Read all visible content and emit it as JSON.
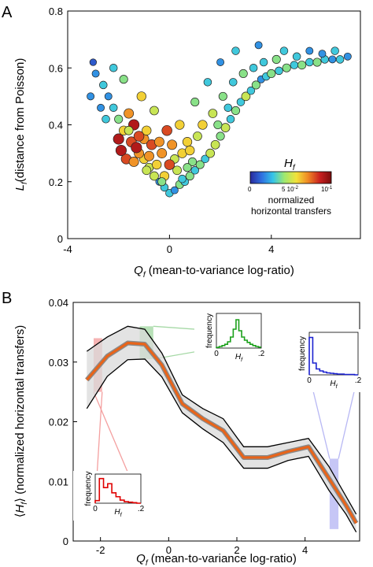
{
  "panel_a": {
    "letter": "A",
    "chart_data": {
      "type": "scatter",
      "xlabel_sym": "Q",
      "xlabel_sub": "f",
      "xlabel_rest": " (mean-to-variance log-ratio)",
      "ylabel_sym": "L",
      "ylabel_sub": "f",
      "ylabel_rest": "(distance from Poisson)",
      "xlim": [
        -4,
        7.5
      ],
      "ylim": [
        0,
        0.8
      ],
      "xticks": [
        "-4",
        "0",
        "4"
      ],
      "xtick_values": [
        -4,
        0,
        4
      ],
      "yticks": [
        "0",
        "0.2",
        "0.4",
        "0.6",
        "0.8"
      ],
      "ytick_values": [
        0,
        0.2,
        0.4,
        0.6,
        0.8
      ],
      "colorbar": {
        "title_sym": "H",
        "title_sub": "f",
        "tick_labels": [
          "0",
          "5 10",
          "-2",
          "10",
          "-1"
        ],
        "caption_line1": "normalized",
        "caption_line2": "horizontal transfers",
        "colors": [
          "#2a2a9c",
          "#2f6fe0",
          "#35c4e8",
          "#9ee870",
          "#f2e23a",
          "#f08a25",
          "#c92020",
          "#7a0d0d"
        ]
      },
      "points": [
        [
          0.0,
          0.16,
          0.3
        ],
        [
          0.2,
          0.17,
          0.2
        ],
        [
          -0.2,
          0.18,
          0.3
        ],
        [
          0.4,
          0.19,
          0.4
        ],
        [
          -0.4,
          0.2,
          0.2
        ],
        [
          0.6,
          0.2,
          0.3
        ],
        [
          -0.6,
          0.22,
          0.5
        ],
        [
          0.8,
          0.22,
          0.4
        ],
        [
          1.0,
          0.24,
          0.3
        ],
        [
          -0.8,
          0.25,
          0.5
        ],
        [
          1.2,
          0.26,
          0.4
        ],
        [
          -1.0,
          0.28,
          0.6
        ],
        [
          1.4,
          0.28,
          0.3
        ],
        [
          -1.2,
          0.3,
          0.7
        ],
        [
          1.6,
          0.3,
          0.5
        ],
        [
          -0.5,
          0.26,
          0.6
        ],
        [
          0.3,
          0.24,
          0.5
        ],
        [
          0.9,
          0.27,
          0.4
        ],
        [
          -0.3,
          0.3,
          0.7
        ],
        [
          0.5,
          0.3,
          0.6
        ],
        [
          -1.5,
          0.34,
          0.8
        ],
        [
          -1.3,
          0.32,
          0.9
        ],
        [
          -1.0,
          0.35,
          0.7
        ],
        [
          -0.7,
          0.33,
          0.8
        ],
        [
          -1.8,
          0.38,
          0.6
        ],
        [
          -2.0,
          0.42,
          0.4
        ],
        [
          -2.2,
          0.46,
          0.3
        ],
        [
          -1.6,
          0.44,
          0.7
        ],
        [
          -2.4,
          0.5,
          0.2
        ],
        [
          -2.6,
          0.54,
          0.3
        ],
        [
          -1.4,
          0.4,
          0.9
        ],
        [
          -0.9,
          0.38,
          0.6
        ],
        [
          1.8,
          0.33,
          0.5
        ],
        [
          2.0,
          0.36,
          0.4
        ],
        [
          2.2,
          0.39,
          0.5
        ],
        [
          2.4,
          0.42,
          0.3
        ],
        [
          2.6,
          0.45,
          0.4
        ],
        [
          2.8,
          0.48,
          0.3
        ],
        [
          3.0,
          0.5,
          0.5
        ],
        [
          3.2,
          0.52,
          0.3
        ],
        [
          3.4,
          0.54,
          0.4
        ],
        [
          3.6,
          0.56,
          0.2
        ],
        [
          3.8,
          0.57,
          0.3
        ],
        [
          4.0,
          0.58,
          0.4
        ],
        [
          4.3,
          0.59,
          0.3
        ],
        [
          4.6,
          0.6,
          0.4
        ],
        [
          4.9,
          0.61,
          0.3
        ],
        [
          5.2,
          0.61,
          0.4
        ],
        [
          5.5,
          0.62,
          0.3
        ],
        [
          5.8,
          0.62,
          0.4
        ],
        [
          6.1,
          0.63,
          0.3
        ],
        [
          6.4,
          0.63,
          0.2
        ],
        [
          6.7,
          0.63,
          0.3
        ],
        [
          7.0,
          0.64,
          0.2
        ],
        [
          1.3,
          0.4,
          0.6
        ],
        [
          1.7,
          0.44,
          0.5
        ],
        [
          2.1,
          0.5,
          0.4
        ],
        [
          2.5,
          0.55,
          0.3
        ],
        [
          2.9,
          0.58,
          0.4
        ],
        [
          3.3,
          0.6,
          0.3
        ],
        [
          0.7,
          0.34,
          0.6
        ],
        [
          0.1,
          0.33,
          0.7
        ],
        [
          -0.1,
          0.38,
          0.8
        ],
        [
          0.4,
          0.4,
          0.6
        ],
        [
          -2.9,
          0.58,
          0.2
        ],
        [
          -3.0,
          0.62,
          0.1
        ],
        [
          -2.2,
          0.6,
          0.3
        ],
        [
          -1.8,
          0.56,
          0.4
        ],
        [
          -1.1,
          0.5,
          0.6
        ],
        [
          -0.6,
          0.45,
          0.5
        ],
        [
          1.0,
          0.48,
          0.4
        ],
        [
          1.5,
          0.55,
          0.3
        ],
        [
          2.0,
          0.62,
          0.2
        ],
        [
          2.6,
          0.66,
          0.3
        ],
        [
          3.5,
          0.68,
          0.2
        ],
        [
          4.5,
          0.66,
          0.3
        ],
        [
          5.5,
          0.66,
          0.2
        ],
        [
          6.5,
          0.66,
          0.3
        ],
        [
          -1.7,
          0.28,
          0.8
        ],
        [
          -1.9,
          0.31,
          0.9
        ],
        [
          -0.2,
          0.22,
          0.6
        ],
        [
          0.7,
          0.25,
          0.4
        ],
        [
          -0.9,
          0.24,
          0.5
        ],
        [
          0.2,
          0.28,
          0.5
        ],
        [
          -2.5,
          0.42,
          0.3
        ],
        [
          -3.1,
          0.5,
          0.2
        ],
        [
          -2.7,
          0.46,
          0.2
        ],
        [
          3.7,
          0.62,
          0.3
        ],
        [
          4.2,
          0.63,
          0.4
        ],
        [
          5.0,
          0.64,
          0.3
        ],
        [
          6.0,
          0.65,
          0.2
        ],
        [
          -0.3,
          0.2,
          0.4
        ],
        [
          0.5,
          0.21,
          0.3
        ],
        [
          -1.2,
          0.36,
          0.8
        ],
        [
          -1.6,
          0.38,
          0.5
        ],
        [
          -0.4,
          0.34,
          0.7
        ],
        [
          1.1,
          0.36,
          0.5
        ],
        [
          1.9,
          0.4,
          0.4
        ],
        [
          -2.0,
          0.35,
          0.9
        ],
        [
          -1.4,
          0.27,
          0.7
        ],
        [
          0.0,
          0.26,
          0.8
        ],
        [
          0.8,
          0.31,
          0.6
        ],
        [
          -0.8,
          0.29,
          0.7
        ],
        [
          2.3,
          0.46,
          0.3
        ]
      ]
    }
  },
  "panel_b": {
    "letter": "B",
    "chart_data": {
      "type": "line",
      "xlabel_sym": "Q",
      "xlabel_sub": "f",
      "xlabel_rest": " (mean-to-variance log-ratio)",
      "ylabel_open": "⟨",
      "ylabel_sym": "H",
      "ylabel_sub": "f",
      "ylabel_close": "⟩",
      "ylabel_rest": " (normalized horizontal transfers)",
      "xlim": [
        -2.8,
        5.6
      ],
      "ylim": [
        0,
        0.04
      ],
      "xticks": [
        "-2",
        "0",
        "2",
        "4"
      ],
      "xtick_values": [
        -2,
        0,
        2,
        4
      ],
      "yticks": [
        "0",
        "0.01",
        "0.02",
        "0.03",
        "0.04"
      ],
      "ytick_values": [
        0,
        0.01,
        0.02,
        0.03,
        0.04
      ],
      "x": [
        -2.4,
        -1.8,
        -1.2,
        -0.7,
        -0.2,
        0.4,
        1.0,
        1.6,
        2.2,
        2.9,
        3.5,
        4.1,
        4.7,
        5.2,
        5.5
      ],
      "mean": [
        0.027,
        0.031,
        0.0332,
        0.033,
        0.0295,
        0.023,
        0.0205,
        0.0185,
        0.014,
        0.014,
        0.015,
        0.0158,
        0.0105,
        0.006,
        0.003
      ],
      "upper": [
        0.0318,
        0.0342,
        0.036,
        0.0355,
        0.0315,
        0.0245,
        0.0222,
        0.0205,
        0.0158,
        0.0158,
        0.0165,
        0.0172,
        0.0125,
        0.0075,
        0.0045
      ],
      "lower": [
        0.0222,
        0.0276,
        0.0304,
        0.0305,
        0.0275,
        0.0215,
        0.0188,
        0.0165,
        0.0122,
        0.0122,
        0.0135,
        0.0142,
        0.0085,
        0.0045,
        0.0015
      ],
      "insets": [
        {
          "id": "red",
          "ylabel": "frequency",
          "xlabel_sym": "H",
          "xlabel_sub": "f",
          "tick0": "0",
          "tick1": ".2",
          "color": "#e00000",
          "highlight_x": [
            -2.2,
            -1.95
          ],
          "highlight_y": [
            0.025,
            0.034
          ],
          "highlight_color": "#f4a0a0",
          "hist": [
            0.1,
            0.95,
            0.6,
            0.75,
            0.4,
            0.25,
            0.12,
            0.06,
            0.04,
            0.02,
            0.0
          ]
        },
        {
          "id": "green",
          "ylabel": "frequency",
          "xlabel_sym": "H",
          "xlabel_sub": "f",
          "tick0": "0",
          "tick1": ".2",
          "color": "#1aa01a",
          "highlight_x": [
            -0.85,
            -0.45
          ],
          "highlight_y": [
            0.0305,
            0.036
          ],
          "highlight_color": "#a6d9a6",
          "hist": [
            0.02,
            0.05,
            0.08,
            0.12,
            0.2,
            0.35,
            0.6,
            0.9,
            0.55,
            0.35,
            0.25,
            0.18,
            0.12,
            0.08,
            0.05,
            0.03
          ]
        },
        {
          "id": "blue",
          "ylabel": "frequency",
          "xlabel_sym": "H",
          "xlabel_sub": "f",
          "tick0": "0",
          "tick1": ".2",
          "color": "#1a20d0",
          "highlight_x": [
            4.72,
            4.98
          ],
          "highlight_y": [
            0.002,
            0.0138
          ],
          "highlight_color": "#b8b8f4",
          "hist": [
            0.95,
            0.3,
            0.15,
            0.1,
            0.07,
            0.05,
            0.04,
            0.03,
            0.02,
            0.02,
            0.01,
            0.01,
            0.01,
            0.0
          ]
        }
      ]
    }
  }
}
